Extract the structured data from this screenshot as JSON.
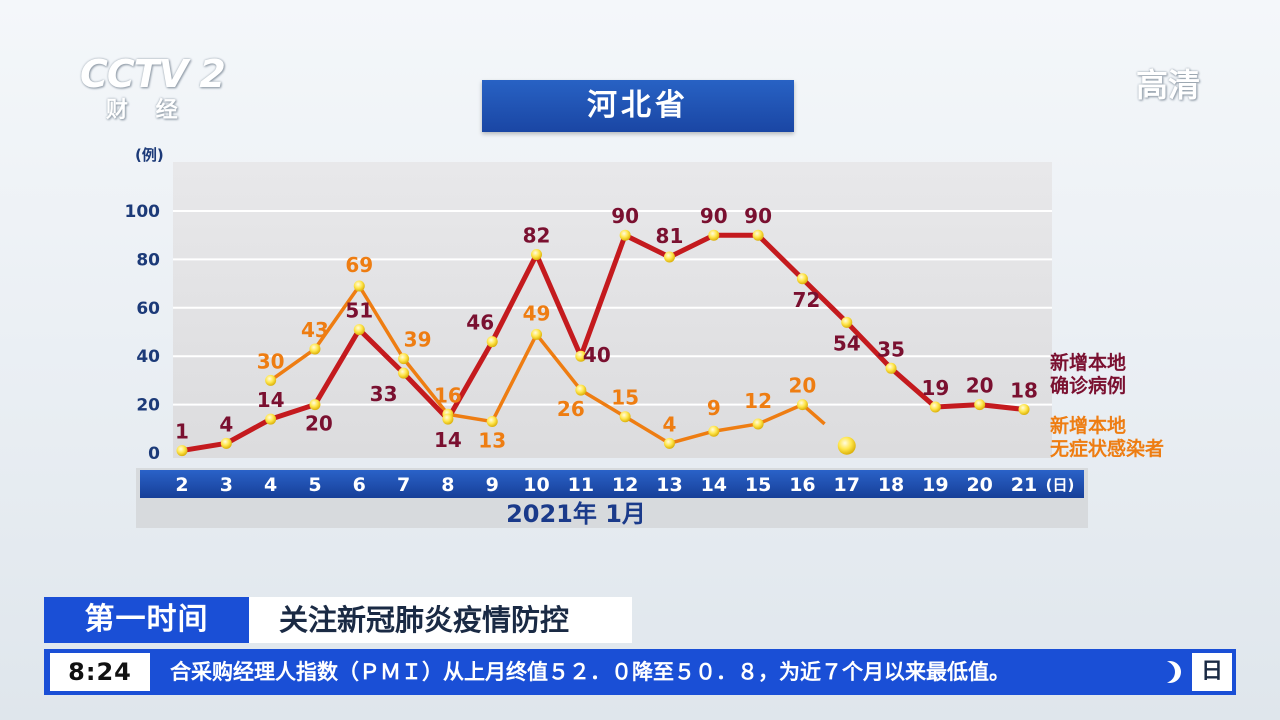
{
  "logo": {
    "text": "CCTV",
    "num": "2",
    "sub": "财 经"
  },
  "hd_badge": "高清",
  "title": "河北省",
  "chart_data": {
    "type": "line",
    "ylabel": "(例)",
    "xlabel": "2021年 1月",
    "x_unit": "(日)",
    "ylim": [
      0,
      110
    ],
    "yticks": [
      0,
      20,
      40,
      60,
      80,
      100
    ],
    "x": [
      2,
      3,
      4,
      5,
      6,
      7,
      8,
      9,
      10,
      11,
      12,
      13,
      14,
      15,
      16,
      17,
      18,
      19,
      20,
      21
    ],
    "grid": true,
    "series": [
      {
        "name": "新增本地确诊病例",
        "color": "#c41a1e",
        "x": [
          2,
          3,
          4,
          5,
          6,
          7,
          8,
          9,
          10,
          11,
          12,
          13,
          14,
          15,
          16,
          17,
          18,
          19,
          20,
          21
        ],
        "values": [
          1,
          4,
          14,
          20,
          51,
          33,
          14,
          46,
          82,
          40,
          90,
          81,
          90,
          90,
          72,
          54,
          35,
          19,
          20,
          18
        ]
      },
      {
        "name": "新增本地无症状感染者",
        "color": "#ee7d12",
        "x": [
          4,
          5,
          6,
          7,
          8,
          9,
          10,
          11,
          12,
          13,
          14,
          15,
          16,
          17
        ],
        "values": [
          30,
          43,
          69,
          39,
          16,
          13,
          49,
          26,
          15,
          4,
          9,
          12,
          20,
          null
        ],
        "value_labels": [
          30,
          43,
          69,
          39,
          16,
          13,
          49,
          26,
          15,
          4,
          9,
          12,
          20,
          null
        ]
      }
    ],
    "legend": [
      "新增本地",
      "确诊病例",
      "新增本地",
      "无症状感染者"
    ],
    "legend_position": "right"
  },
  "news": {
    "tag": "第一时间",
    "headline": "关注新冠肺炎疫情防控"
  },
  "ticker": {
    "time": "8:24",
    "text": "合采购经理人指数（ＰＭＩ）从上月终值５２．０降至５０．８，为近７个月以来最低值。",
    "day": "日",
    "icon": "moon-icon"
  }
}
